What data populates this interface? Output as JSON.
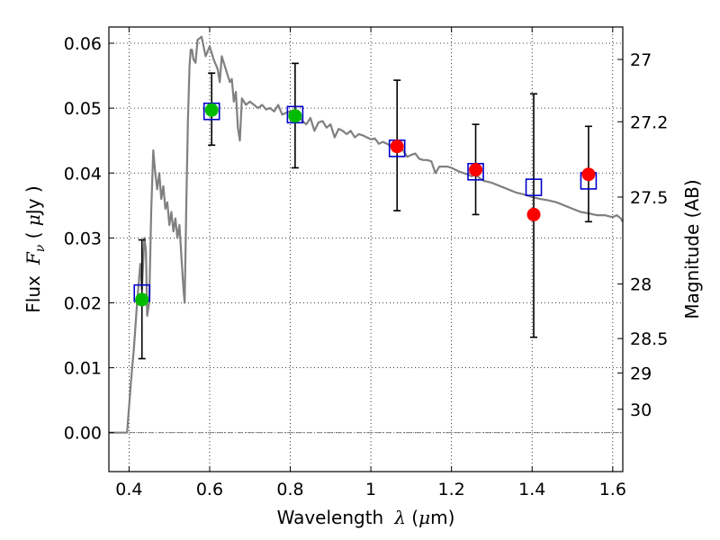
{
  "chart_data": {
    "type": "line",
    "title": "",
    "xlabel": {
      "text": "Wavelength",
      "symbol": "λ",
      "unit_open": " (",
      "unit_mu": "μ",
      "unit_m": "m)"
    },
    "ylabel": {
      "text": "Flux",
      "symbol": "F",
      "subscript": "ν",
      "unit_open": " ( ",
      "unit_mu": "μ",
      "unit_rest": "Jy )"
    },
    "y2label": "Magnitude (AB)",
    "xlim": [
      0.35,
      1.625
    ],
    "ylim": [
      -0.006,
      0.0625
    ],
    "grid": true,
    "grid_style": "dotted",
    "x_ticks": [
      {
        "v": 0.4,
        "label": "0.4"
      },
      {
        "v": 0.6,
        "label": "0.6"
      },
      {
        "v": 0.8,
        "label": "0.8"
      },
      {
        "v": 1.0,
        "label": "1"
      },
      {
        "v": 1.2,
        "label": "1.2"
      },
      {
        "v": 1.4,
        "label": "1.4"
      },
      {
        "v": 1.6,
        "label": "1.6"
      }
    ],
    "y_ticks": [
      {
        "v": 0.0,
        "label": "0.00"
      },
      {
        "v": 0.01,
        "label": "0.01"
      },
      {
        "v": 0.02,
        "label": "0.02"
      },
      {
        "v": 0.03,
        "label": "0.03"
      },
      {
        "v": 0.04,
        "label": "0.04"
      },
      {
        "v": 0.05,
        "label": "0.05"
      },
      {
        "v": 0.06,
        "label": "0.06"
      }
    ],
    "y2_ticks": [
      {
        "flux": 0.0575,
        "label": "27"
      },
      {
        "flux": 0.0479,
        "label": "27.2"
      },
      {
        "flux": 0.0363,
        "label": "27.5"
      },
      {
        "flux": 0.0229,
        "label": "28"
      },
      {
        "flux": 0.0145,
        "label": "28.5"
      },
      {
        "flux": 0.0092,
        "label": "29"
      },
      {
        "flux": 0.0036,
        "label": "30"
      }
    ],
    "zero_line": 0.0,
    "colors": {
      "model": "#808080",
      "bands": "#0000cc",
      "green": "#00bb00",
      "red": "#ff0000",
      "errorbar": "#000000"
    },
    "model_spectrum": {
      "name": "",
      "x": [
        0.35,
        0.395,
        0.4,
        0.405,
        0.412,
        0.42,
        0.428,
        0.432,
        0.438,
        0.442,
        0.445,
        0.45,
        0.455,
        0.46,
        0.465,
        0.47,
        0.475,
        0.48,
        0.485,
        0.49,
        0.495,
        0.5,
        0.505,
        0.51,
        0.515,
        0.52,
        0.525,
        0.53,
        0.535,
        0.538,
        0.542,
        0.546,
        0.55,
        0.553,
        0.556,
        0.56,
        0.565,
        0.57,
        0.58,
        0.59,
        0.6,
        0.61,
        0.62,
        0.625,
        0.63,
        0.64,
        0.65,
        0.655,
        0.66,
        0.665,
        0.67,
        0.675,
        0.68,
        0.69,
        0.7,
        0.71,
        0.72,
        0.73,
        0.74,
        0.75,
        0.76,
        0.77,
        0.78,
        0.79,
        0.8,
        0.81,
        0.82,
        0.83,
        0.84,
        0.85,
        0.86,
        0.87,
        0.88,
        0.89,
        0.9,
        0.91,
        0.92,
        0.93,
        0.94,
        0.95,
        0.96,
        0.97,
        0.98,
        0.99,
        1.0,
        1.01,
        1.02,
        1.03,
        1.04,
        1.05,
        1.06,
        1.07,
        1.08,
        1.09,
        1.1,
        1.11,
        1.12,
        1.13,
        1.14,
        1.15,
        1.16,
        1.17,
        1.18,
        1.19,
        1.2,
        1.21,
        1.22,
        1.23,
        1.24,
        1.25,
        1.26,
        1.27,
        1.28,
        1.3,
        1.32,
        1.34,
        1.36,
        1.38,
        1.4,
        1.42,
        1.44,
        1.46,
        1.48,
        1.5,
        1.52,
        1.54,
        1.56,
        1.58,
        1.6,
        1.61,
        1.62,
        1.625
      ],
      "y": [
        0.0,
        0.0,
        0.004,
        0.008,
        0.013,
        0.02,
        0.026,
        0.022,
        0.03,
        0.028,
        0.018,
        0.02,
        0.034,
        0.0435,
        0.04,
        0.0375,
        0.04,
        0.036,
        0.038,
        0.0345,
        0.0355,
        0.032,
        0.034,
        0.031,
        0.033,
        0.03,
        0.032,
        0.027,
        0.022,
        0.02,
        0.035,
        0.048,
        0.0565,
        0.059,
        0.059,
        0.0575,
        0.057,
        0.0605,
        0.061,
        0.058,
        0.0595,
        0.0575,
        0.056,
        0.054,
        0.058,
        0.056,
        0.054,
        0.0545,
        0.051,
        0.0525,
        0.047,
        0.045,
        0.0515,
        0.0505,
        0.051,
        0.0505,
        0.05,
        0.0505,
        0.0498,
        0.05,
        0.0495,
        0.0505,
        0.049,
        0.0493,
        0.0495,
        0.0488,
        0.049,
        0.048,
        0.0475,
        0.0485,
        0.0465,
        0.0478,
        0.048,
        0.047,
        0.0475,
        0.0455,
        0.0468,
        0.0465,
        0.046,
        0.0465,
        0.0455,
        0.046,
        0.0458,
        0.0455,
        0.0452,
        0.0453,
        0.0445,
        0.0448,
        0.0445,
        0.0442,
        0.044,
        0.0443,
        0.0435,
        0.0425,
        0.0428,
        0.043,
        0.0422,
        0.042,
        0.042,
        0.0418,
        0.04,
        0.041,
        0.041,
        0.041,
        0.0408,
        0.0405,
        0.0402,
        0.04,
        0.0398,
        0.0395,
        0.0398,
        0.0392,
        0.0388,
        0.0385,
        0.038,
        0.0375,
        0.037,
        0.0367,
        0.0363,
        0.036,
        0.0358,
        0.0355,
        0.035,
        0.0345,
        0.034,
        0.0338,
        0.0335,
        0.0335,
        0.0332,
        0.0335,
        0.033,
        0.0325
      ]
    },
    "series": [
      {
        "name": "",
        "marker": "open-square",
        "color": "#0000cc",
        "x": [
          0.432,
          0.605,
          0.812,
          1.065,
          1.26,
          1.404,
          1.54
        ],
        "y": [
          0.0215,
          0.0495,
          0.049,
          0.0438,
          0.0402,
          0.0378,
          0.0388
        ]
      },
      {
        "name": "",
        "marker": "filled-circle",
        "color": "#00bb00",
        "x": [
          0.432,
          0.605,
          0.812
        ],
        "y": [
          0.0205,
          0.0497,
          0.0488
        ]
      },
      {
        "name": "",
        "marker": "filled-circle",
        "color": "#ff0000",
        "x": [
          1.065,
          1.26,
          1.404,
          1.54
        ],
        "y": [
          0.0441,
          0.0405,
          0.0336,
          0.0398
        ]
      },
      {
        "name": "",
        "marker": "errorbar",
        "color": "#000000",
        "x": [
          0.432,
          0.605,
          0.812,
          1.065,
          1.26,
          1.404,
          1.54
        ],
        "ylow": [
          0.0114,
          0.0443,
          0.0408,
          0.0342,
          0.0336,
          0.0147,
          0.0325
        ],
        "yhigh": [
          0.0297,
          0.0554,
          0.0569,
          0.0543,
          0.0475,
          0.0522,
          0.0472
        ]
      }
    ]
  }
}
